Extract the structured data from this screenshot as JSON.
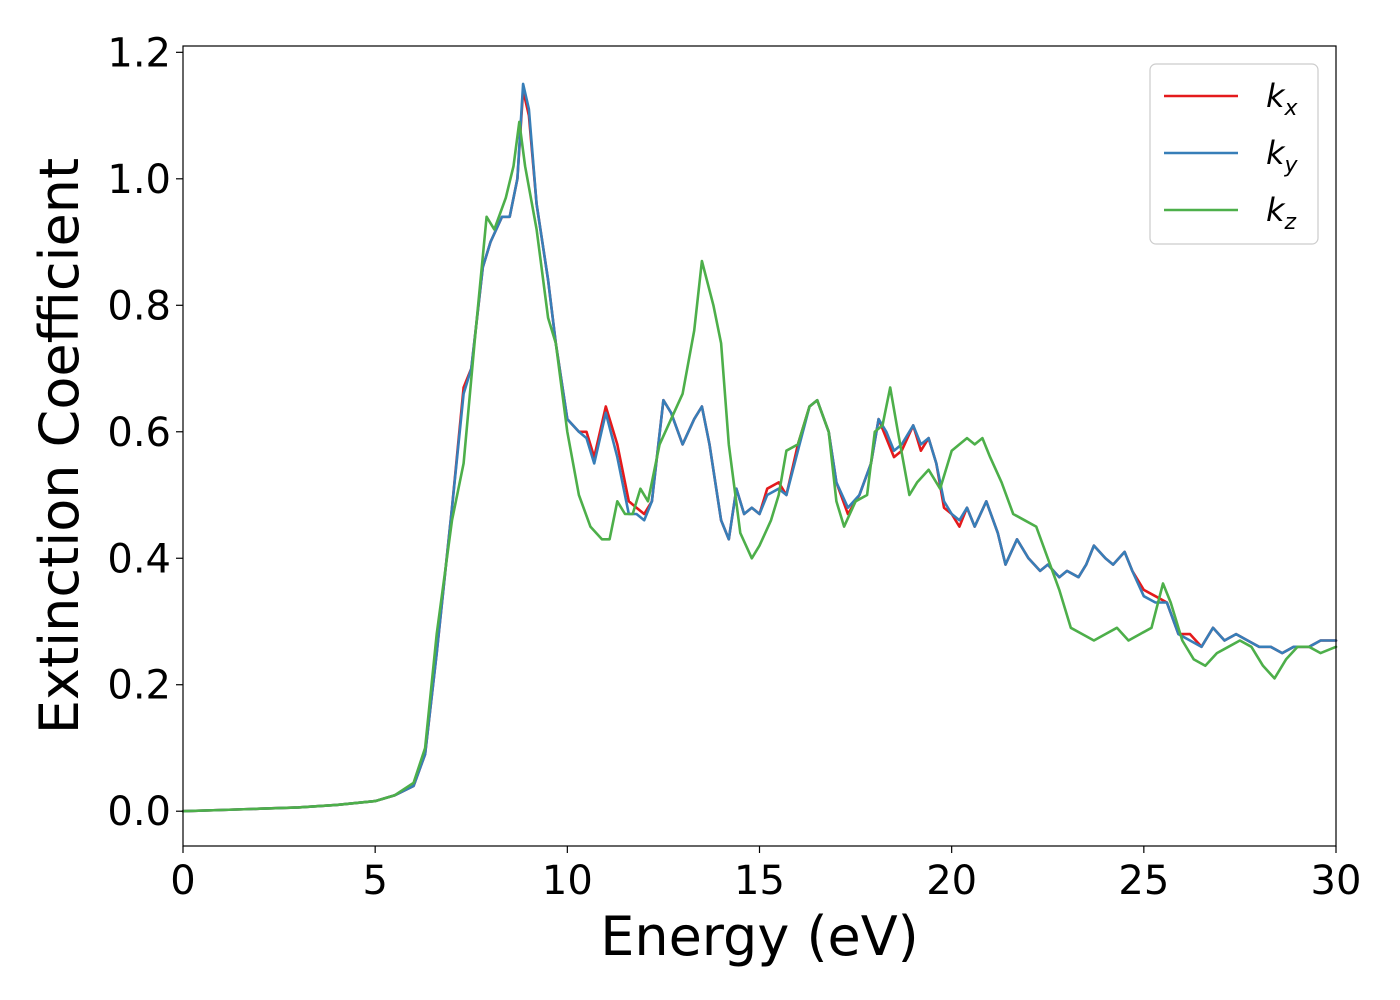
{
  "chart_data": {
    "type": "line",
    "title": "",
    "xlabel": "Energy (eV)",
    "ylabel": "Extinction Coefficient",
    "xlim": [
      0,
      30
    ],
    "ylim": [
      -0.055,
      1.21
    ],
    "xticks": [
      0,
      5,
      10,
      15,
      20,
      25,
      30
    ],
    "xtick_labels": [
      "0",
      "5",
      "10",
      "15",
      "20",
      "25",
      "30"
    ],
    "yticks": [
      0.0,
      0.2,
      0.4,
      0.6,
      0.8,
      1.0,
      1.2
    ],
    "ytick_labels": [
      "0.0",
      "0.2",
      "0.4",
      "0.6",
      "0.8",
      "1.0",
      "1.2"
    ],
    "grid": false,
    "legend_position": "top-right",
    "series": [
      {
        "name": "k_x",
        "legend_base": "k",
        "legend_sub": "x",
        "color": "#e41a1c",
        "x": [
          0,
          1,
          2,
          3,
          4,
          5,
          5.5,
          6,
          6.3,
          6.6,
          7,
          7.3,
          7.5,
          7.8,
          8,
          8.3,
          8.5,
          8.7,
          8.85,
          9,
          9.2,
          9.5,
          9.7,
          10,
          10.3,
          10.5,
          10.7,
          11,
          11.3,
          11.6,
          11.8,
          12,
          12.2,
          12.5,
          12.7,
          13,
          13.3,
          13.5,
          13.7,
          14,
          14.2,
          14.4,
          14.6,
          14.8,
          15,
          15.2,
          15.5,
          15.7,
          16,
          16.3,
          16.5,
          16.8,
          17,
          17.3,
          17.6,
          17.9,
          18.1,
          18.3,
          18.5,
          18.7,
          19,
          19.2,
          19.4,
          19.6,
          19.8,
          20,
          20.2,
          20.4,
          20.6,
          20.9,
          21.2,
          21.4,
          21.7,
          22,
          22.3,
          22.5,
          22.8,
          23,
          23.3,
          23.5,
          23.7,
          24,
          24.2,
          24.5,
          24.7,
          25,
          25.3,
          25.6,
          25.9,
          26.2,
          26.5,
          26.8,
          27.1,
          27.4,
          27.7,
          28,
          28.3,
          28.6,
          28.9,
          29.3,
          29.6,
          30
        ],
        "y": [
          0.0,
          0.002,
          0.004,
          0.006,
          0.01,
          0.016,
          0.025,
          0.04,
          0.09,
          0.25,
          0.48,
          0.67,
          0.7,
          0.86,
          0.9,
          0.94,
          0.94,
          1.0,
          1.14,
          1.1,
          0.96,
          0.84,
          0.74,
          0.62,
          0.6,
          0.6,
          0.56,
          0.64,
          0.58,
          0.49,
          0.48,
          0.47,
          0.49,
          0.65,
          0.63,
          0.58,
          0.62,
          0.64,
          0.58,
          0.46,
          0.43,
          0.51,
          0.47,
          0.48,
          0.47,
          0.51,
          0.52,
          0.5,
          0.58,
          0.64,
          0.65,
          0.6,
          0.52,
          0.47,
          0.5,
          0.55,
          0.62,
          0.59,
          0.56,
          0.57,
          0.61,
          0.57,
          0.59,
          0.55,
          0.48,
          0.47,
          0.45,
          0.48,
          0.45,
          0.49,
          0.44,
          0.39,
          0.43,
          0.4,
          0.38,
          0.39,
          0.37,
          0.38,
          0.37,
          0.39,
          0.42,
          0.4,
          0.39,
          0.41,
          0.38,
          0.35,
          0.34,
          0.33,
          0.28,
          0.28,
          0.26,
          0.29,
          0.27,
          0.28,
          0.27,
          0.26,
          0.26,
          0.25,
          0.26,
          0.26,
          0.27,
          0.27
        ]
      },
      {
        "name": "k_y",
        "legend_base": "k",
        "legend_sub": "y",
        "color": "#377eb8",
        "x": [
          0,
          1,
          2,
          3,
          4,
          5,
          5.5,
          6,
          6.3,
          6.6,
          7,
          7.3,
          7.5,
          7.8,
          8,
          8.3,
          8.5,
          8.7,
          8.85,
          9,
          9.2,
          9.5,
          9.7,
          10,
          10.3,
          10.5,
          10.7,
          11,
          11.3,
          11.6,
          11.8,
          12,
          12.2,
          12.5,
          12.7,
          13,
          13.3,
          13.5,
          13.7,
          14,
          14.2,
          14.4,
          14.6,
          14.8,
          15,
          15.2,
          15.5,
          15.7,
          16,
          16.3,
          16.5,
          16.8,
          17,
          17.3,
          17.6,
          17.9,
          18.1,
          18.3,
          18.5,
          18.7,
          19,
          19.2,
          19.4,
          19.6,
          19.8,
          20,
          20.2,
          20.4,
          20.6,
          20.9,
          21.2,
          21.4,
          21.7,
          22,
          22.3,
          22.5,
          22.8,
          23,
          23.3,
          23.5,
          23.7,
          24,
          24.2,
          24.5,
          24.7,
          25,
          25.3,
          25.6,
          25.9,
          26.2,
          26.5,
          26.8,
          27.1,
          27.4,
          27.7,
          28,
          28.3,
          28.6,
          28.9,
          29.3,
          29.6,
          30
        ],
        "y": [
          0.0,
          0.002,
          0.004,
          0.006,
          0.01,
          0.016,
          0.025,
          0.04,
          0.09,
          0.25,
          0.48,
          0.66,
          0.7,
          0.86,
          0.9,
          0.94,
          0.94,
          1.0,
          1.15,
          1.11,
          0.96,
          0.84,
          0.74,
          0.62,
          0.6,
          0.59,
          0.55,
          0.63,
          0.56,
          0.47,
          0.47,
          0.46,
          0.49,
          0.65,
          0.63,
          0.58,
          0.62,
          0.64,
          0.58,
          0.46,
          0.43,
          0.51,
          0.47,
          0.48,
          0.47,
          0.5,
          0.51,
          0.5,
          0.57,
          0.64,
          0.65,
          0.6,
          0.52,
          0.48,
          0.5,
          0.55,
          0.62,
          0.6,
          0.57,
          0.58,
          0.61,
          0.58,
          0.59,
          0.55,
          0.49,
          0.47,
          0.46,
          0.48,
          0.45,
          0.49,
          0.44,
          0.39,
          0.43,
          0.4,
          0.38,
          0.39,
          0.37,
          0.38,
          0.37,
          0.39,
          0.42,
          0.4,
          0.39,
          0.41,
          0.38,
          0.34,
          0.33,
          0.33,
          0.28,
          0.27,
          0.26,
          0.29,
          0.27,
          0.28,
          0.27,
          0.26,
          0.26,
          0.25,
          0.26,
          0.26,
          0.27,
          0.27
        ]
      },
      {
        "name": "k_z",
        "legend_base": "k",
        "legend_sub": "z",
        "color": "#4daf4a",
        "x": [
          0,
          1,
          2,
          3,
          4,
          5,
          5.5,
          6,
          6.3,
          6.6,
          7,
          7.3,
          7.6,
          7.9,
          8.1,
          8.4,
          8.6,
          8.75,
          8.9,
          9.2,
          9.5,
          9.7,
          10,
          10.3,
          10.6,
          10.9,
          11.1,
          11.3,
          11.5,
          11.7,
          11.9,
          12.1,
          12.4,
          12.7,
          13,
          13.3,
          13.5,
          13.8,
          14,
          14.2,
          14.5,
          14.8,
          15,
          15.3,
          15.5,
          15.7,
          16,
          16.3,
          16.5,
          16.8,
          17,
          17.2,
          17.5,
          17.8,
          18,
          18.2,
          18.4,
          18.6,
          18.9,
          19.1,
          19.4,
          19.7,
          20,
          20.2,
          20.4,
          20.6,
          20.8,
          21,
          21.3,
          21.6,
          21.9,
          22.2,
          22.5,
          22.8,
          23.1,
          23.4,
          23.7,
          24,
          24.3,
          24.6,
          24.9,
          25.2,
          25.5,
          25.7,
          26,
          26.3,
          26.6,
          26.9,
          27.2,
          27.5,
          27.8,
          28.1,
          28.4,
          28.7,
          29,
          29.3,
          29.6,
          30
        ],
        "y": [
          0.0,
          0.002,
          0.004,
          0.006,
          0.01,
          0.016,
          0.025,
          0.045,
          0.1,
          0.28,
          0.46,
          0.55,
          0.75,
          0.94,
          0.92,
          0.97,
          1.02,
          1.09,
          1.02,
          0.92,
          0.78,
          0.74,
          0.6,
          0.5,
          0.45,
          0.43,
          0.43,
          0.49,
          0.47,
          0.47,
          0.51,
          0.49,
          0.58,
          0.62,
          0.66,
          0.76,
          0.87,
          0.8,
          0.74,
          0.58,
          0.44,
          0.4,
          0.42,
          0.46,
          0.5,
          0.57,
          0.58,
          0.64,
          0.65,
          0.6,
          0.49,
          0.45,
          0.49,
          0.5,
          0.6,
          0.61,
          0.67,
          0.6,
          0.5,
          0.52,
          0.54,
          0.51,
          0.57,
          0.58,
          0.59,
          0.58,
          0.59,
          0.56,
          0.52,
          0.47,
          0.46,
          0.45,
          0.4,
          0.35,
          0.29,
          0.28,
          0.27,
          0.28,
          0.29,
          0.27,
          0.28,
          0.29,
          0.36,
          0.33,
          0.27,
          0.24,
          0.23,
          0.25,
          0.26,
          0.27,
          0.26,
          0.23,
          0.21,
          0.24,
          0.26,
          0.26,
          0.25,
          0.26
        ]
      }
    ]
  }
}
